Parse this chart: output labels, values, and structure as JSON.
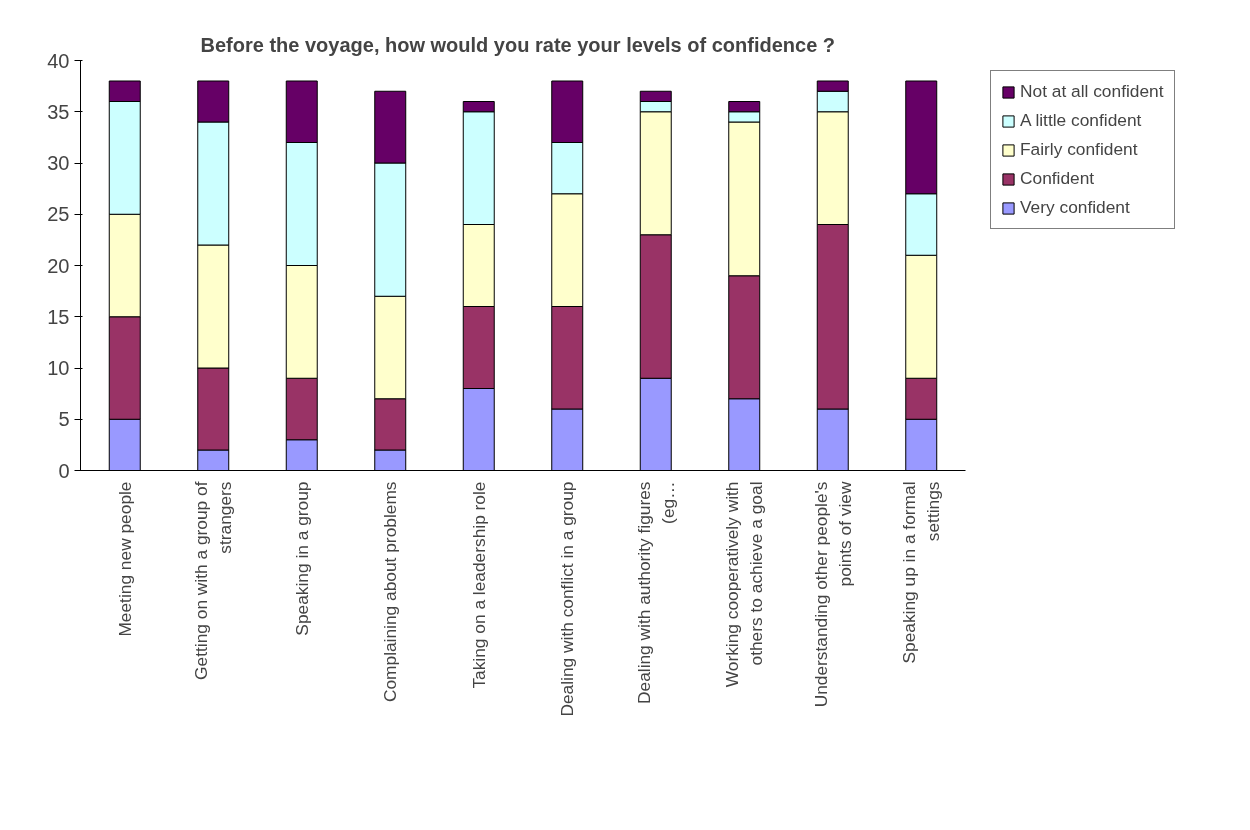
{
  "chart_data": {
    "type": "bar",
    "stacked": true,
    "title": "Before the voyage, how would you rate your levels of confidence ?",
    "categories": [
      "Meeting new people",
      "Getting on with a group of\nstrangers",
      "Speaking in a group",
      "Complaining about problems",
      "Taking on a leadership role",
      "Dealing with conflict in a group",
      "Dealing with authority figures\n(eg…",
      "Working cooperatively with\nothers to achieve a goal",
      "Understanding other people's\npoints of view",
      "Speaking up in a formal\nsettings"
    ],
    "series": [
      {
        "name": "Very confident",
        "color": "#9999ff",
        "values": [
          5,
          2,
          3,
          2,
          8,
          6,
          9,
          7,
          6,
          5
        ]
      },
      {
        "name": "Confident",
        "color": "#993366",
        "values": [
          10,
          8,
          6,
          5,
          8,
          10,
          14,
          12,
          18,
          4
        ]
      },
      {
        "name": "Fairly confident",
        "color": "#ffffcc",
        "values": [
          10,
          12,
          11,
          10,
          8,
          11,
          12,
          15,
          11,
          12
        ]
      },
      {
        "name": "A little confident",
        "color": "#ccffff",
        "values": [
          11,
          12,
          12,
          13,
          11,
          5,
          1,
          1,
          2,
          6
        ]
      },
      {
        "name": "Not at all confident",
        "color": "#660066",
        "values": [
          2,
          4,
          6,
          7,
          1,
          6,
          1,
          1,
          1,
          11
        ]
      }
    ],
    "ylim": [
      0,
      40
    ],
    "yticks": [
      0,
      5,
      10,
      15,
      20,
      25,
      30,
      35,
      40
    ],
    "grid": false,
    "legend": "right"
  }
}
